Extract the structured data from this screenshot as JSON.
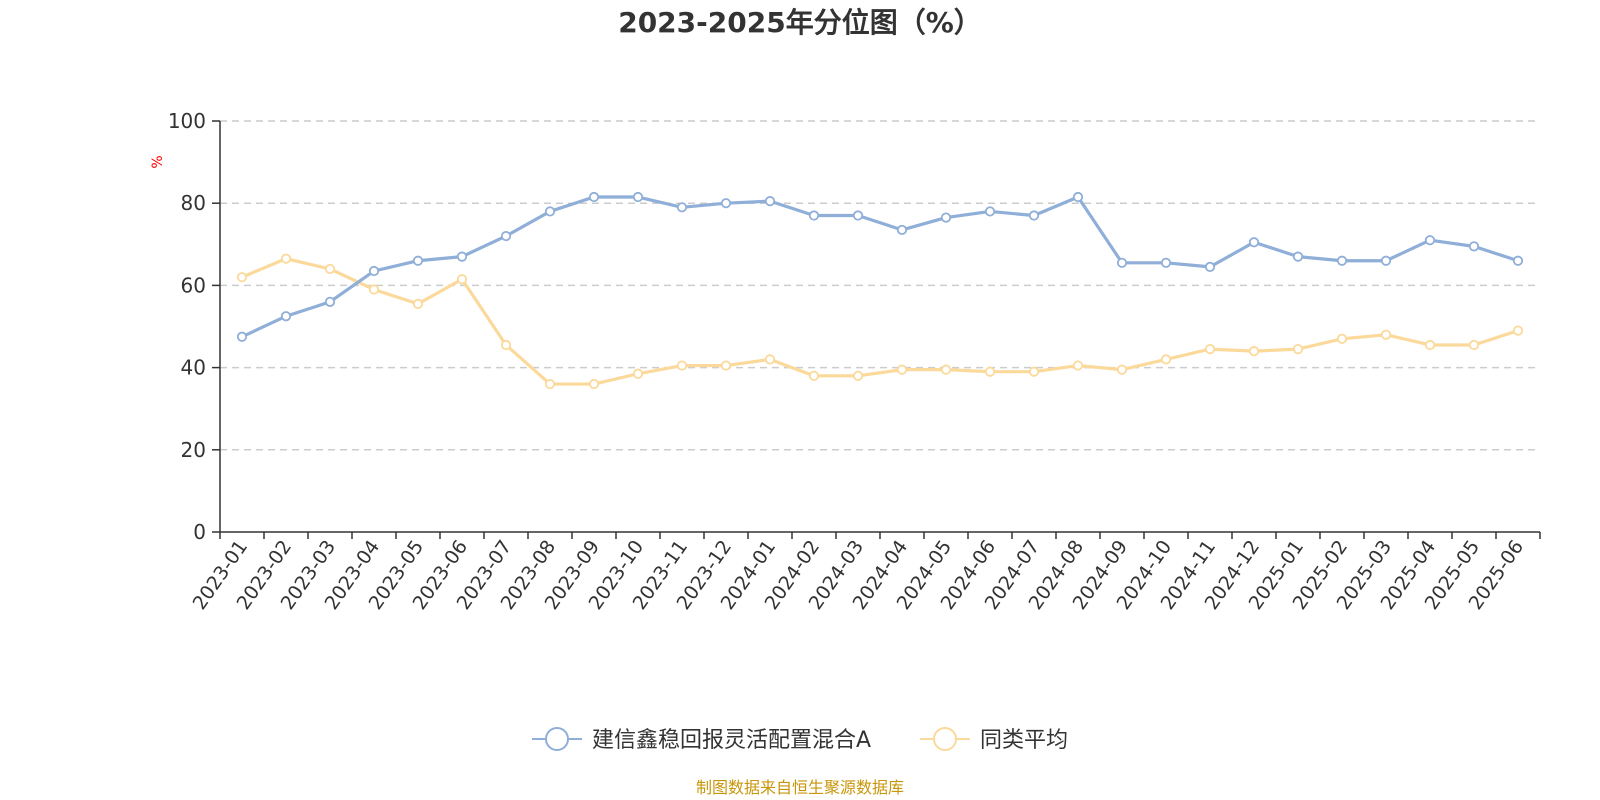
{
  "chart_data": {
    "type": "line",
    "title": "2023-2025年分位图（%）",
    "ylabel": "%",
    "ylim": [
      0,
      100
    ],
    "yticks": [
      0,
      20,
      40,
      60,
      80,
      100
    ],
    "grid": true,
    "legend_position": "bottom",
    "categories": [
      "2023-01",
      "2023-02",
      "2023-03",
      "2023-04",
      "2023-05",
      "2023-06",
      "2023-07",
      "2023-08",
      "2023-09",
      "2023-10",
      "2023-11",
      "2023-12",
      "2024-01",
      "2024-02",
      "2024-03",
      "2024-04",
      "2024-05",
      "2024-06",
      "2024-07",
      "2024-08",
      "2024-09",
      "2024-10",
      "2024-11",
      "2024-12",
      "2025-01",
      "2025-02",
      "2025-03",
      "2025-04",
      "2025-05",
      "2025-06"
    ],
    "series": [
      {
        "name": "建信鑫稳回报灵活配置混合A",
        "color": "#8faed8",
        "values": [
          47.5,
          52.5,
          56,
          63.5,
          66,
          67,
          72,
          78,
          81.5,
          81.5,
          79,
          80,
          80.5,
          77,
          77,
          73.5,
          76.5,
          78,
          77,
          81.5,
          65.5,
          65.5,
          64.5,
          70.5,
          67,
          66,
          66,
          71,
          69.5,
          66
        ]
      },
      {
        "name": "同类平均",
        "color": "#fbd99a",
        "values": [
          62,
          66.5,
          64,
          59,
          55.5,
          61.5,
          45.5,
          36,
          36,
          38.5,
          40.5,
          40.5,
          42,
          38,
          38,
          39.5,
          39.5,
          39,
          39,
          40.5,
          39.5,
          42,
          44.5,
          44,
          44.5,
          47,
          48,
          45.5,
          45.5,
          49
        ]
      }
    ]
  },
  "colors": {
    "axis": "#333333",
    "grid": "#cccccc",
    "ylabel": "#ff0000",
    "source": "#c8960a"
  },
  "source_text": "制图数据来自恒生聚源数据库"
}
